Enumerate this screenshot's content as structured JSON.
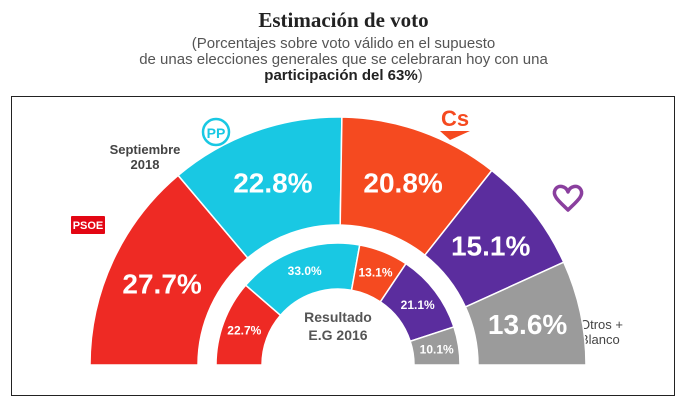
{
  "header": {
    "title": "Estimación de voto",
    "subtitle_line1": "(Porcentajes sobre voto válido en el supuesto",
    "subtitle_line2": "de unas elecciones generales que se celebraran hoy con una",
    "subtitle_bold": "participación del 63%",
    "subtitle_end": ")"
  },
  "labels": {
    "outer_ring": [
      "Septiembre",
      "2018"
    ],
    "inner_ring": [
      "Resultado",
      "E.G 2016"
    ],
    "others": [
      "Otros +",
      "Blanco"
    ]
  },
  "logos": {
    "psoe": "PSOE",
    "pp": "PP",
    "cs": "Cs",
    "podemos": "heart-logo"
  },
  "chart_data": {
    "type": "donut",
    "categories": [
      "PSOE",
      "PP",
      "Cs",
      "Unidos Podemos",
      "Otros + Blanco"
    ],
    "colors": [
      "#ee2a24",
      "#19c8e3",
      "#f54a20",
      "#5b2d9e",
      "#9b9b9b"
    ],
    "series": [
      {
        "name": "Septiembre 2018",
        "values": [
          27.7,
          22.8,
          20.8,
          15.1,
          13.6
        ],
        "labels": [
          "27.7%",
          "22.8%",
          "20.8%",
          "15.1%",
          "13.6%"
        ]
      },
      {
        "name": "Resultado E.G 2016",
        "values": [
          22.7,
          33.0,
          13.1,
          21.1,
          10.1
        ],
        "labels": [
          "22.7%",
          "33.0%",
          "13.1%",
          "21.1%",
          "10.1%"
        ]
      }
    ]
  }
}
